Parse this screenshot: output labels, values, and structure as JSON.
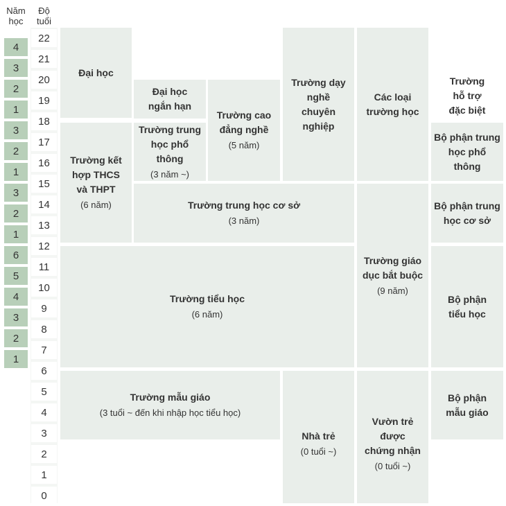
{
  "headers": {
    "grade": [
      "Năm",
      "học"
    ],
    "age": [
      "Độ",
      "tuổi"
    ]
  },
  "ages": [
    "22",
    "21",
    "20",
    "19",
    "18",
    "17",
    "16",
    "15",
    "14",
    "13",
    "12",
    "11",
    "10",
    "9",
    "8",
    "7",
    "6",
    "5",
    "4",
    "3",
    "2",
    "1",
    "0"
  ],
  "grades": [
    "4",
    "3",
    "2",
    "1",
    "3",
    "2",
    "1",
    "3",
    "2",
    "1",
    "6",
    "5",
    "4",
    "3",
    "2",
    "1"
  ],
  "boxes": {
    "university": {
      "title": [
        "Đại học"
      ]
    },
    "junior_college": {
      "title": [
        "Đại học",
        "ngắn hạn"
      ]
    },
    "college_of_technology": {
      "title": [
        "Trường cao",
        "đẳng nghề"
      ],
      "sub": "(5 năm)"
    },
    "specialized_training": {
      "title": [
        "Trường dạy",
        "nghề",
        "chuyên",
        "nghiệp"
      ]
    },
    "miscellaneous": {
      "title": [
        "Các loại",
        "trường học"
      ]
    },
    "special_school": {
      "title": [
        "Trường",
        "hỗ trợ",
        "đặc biệt"
      ]
    },
    "secondary_school": {
      "title": [
        "Trường kết",
        "hợp THCS",
        "và THPT"
      ],
      "sub": "(6 năm)"
    },
    "high_school": {
      "title": [
        "Trường trung",
        "học phổ thông"
      ],
      "sub": "(3 năm ~)"
    },
    "special_upper": {
      "title": [
        "Bộ phận trung",
        "học phổ thông"
      ]
    },
    "lower_secondary": {
      "title": [
        "Trường trung học cơ sở"
      ],
      "sub": "(3 năm)"
    },
    "special_lower": {
      "title": [
        "Bộ phận trung",
        "học cơ sở"
      ]
    },
    "compulsory": {
      "title": [
        "Trường giáo",
        "dục bắt buộc"
      ],
      "sub": "(9 năm)"
    },
    "elementary": {
      "title": [
        "Trường tiểu học"
      ],
      "sub": "(6 năm)"
    },
    "special_elementary": {
      "title": [
        "Bộ phận",
        "tiểu học"
      ]
    },
    "kindergarten": {
      "title": [
        "Trường mẫu giáo"
      ],
      "sub": "(3 tuổi ~ đến khi nhập học tiểu học)"
    },
    "nursery": {
      "title": [
        "Nhà trẻ"
      ],
      "sub": "(0 tuổi ~)"
    },
    "certified_center": {
      "title": [
        "Vườn trẻ",
        "được",
        "chứng nhận"
      ],
      "sub": "(0 tuổi ~)"
    },
    "special_kindergarten": {
      "title": [
        "Bộ phận",
        "mẫu giáo"
      ]
    }
  }
}
